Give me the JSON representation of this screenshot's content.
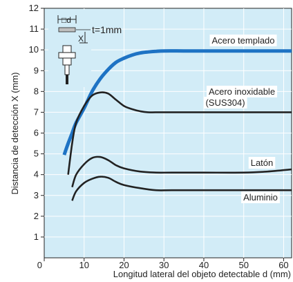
{
  "chart_data": {
    "type": "line",
    "title": "",
    "xlabel": "Longitud lateral del objeto detectable d (mm)",
    "ylabel": "Distancia de detección X (mm)",
    "xlim": [
      0,
      62
    ],
    "ylim": [
      0,
      12
    ],
    "x_ticks": [
      "0",
      "10",
      "20",
      "30",
      "40",
      "50",
      "60"
    ],
    "y_ticks": [
      "1",
      "2",
      "3",
      "4",
      "5",
      "6",
      "7",
      "8",
      "9",
      "10",
      "11",
      "12"
    ],
    "grid": true,
    "inset": {
      "d_label": "□d",
      "x_label": "X",
      "thickness_label": "t=1mm"
    },
    "series": [
      {
        "name": "Acero templado",
        "color": "#1e73c4",
        "points": [
          [
            5,
            4.95
          ],
          [
            6,
            5.5
          ],
          [
            7,
            6.0
          ],
          [
            8,
            6.5
          ],
          [
            10,
            7.2
          ],
          [
            12,
            8.0
          ],
          [
            14,
            8.6
          ],
          [
            16,
            9.05
          ],
          [
            18,
            9.4
          ],
          [
            20,
            9.6
          ],
          [
            22,
            9.75
          ],
          [
            24,
            9.85
          ],
          [
            26,
            9.9
          ],
          [
            28,
            9.93
          ],
          [
            30,
            9.95
          ],
          [
            35,
            9.95
          ],
          [
            40,
            9.95
          ],
          [
            50,
            9.95
          ],
          [
            62,
            9.95
          ]
        ]
      },
      {
        "name": "Acero inoxidable",
        "name_line2": "(SUS304)",
        "color": "#222222",
        "points": [
          [
            6,
            4.0
          ],
          [
            7,
            5.5
          ],
          [
            8,
            6.5
          ],
          [
            10,
            7.3
          ],
          [
            12,
            7.8
          ],
          [
            14,
            7.95
          ],
          [
            16,
            7.9
          ],
          [
            18,
            7.6
          ],
          [
            20,
            7.3
          ],
          [
            22,
            7.15
          ],
          [
            24,
            7.05
          ],
          [
            26,
            7.0
          ],
          [
            30,
            7.0
          ],
          [
            40,
            7.0
          ],
          [
            50,
            7.0
          ],
          [
            62,
            7.0
          ]
        ]
      },
      {
        "name": "Latón",
        "color": "#222222",
        "points": [
          [
            7,
            3.4
          ],
          [
            8,
            4.0
          ],
          [
            10,
            4.5
          ],
          [
            12,
            4.8
          ],
          [
            14,
            4.85
          ],
          [
            16,
            4.7
          ],
          [
            18,
            4.45
          ],
          [
            20,
            4.3
          ],
          [
            24,
            4.15
          ],
          [
            28,
            4.1
          ],
          [
            32,
            4.1
          ],
          [
            40,
            4.1
          ],
          [
            50,
            4.1
          ],
          [
            56,
            4.15
          ],
          [
            62,
            4.25
          ]
        ]
      },
      {
        "name": "Aluminio",
        "color": "#222222",
        "points": [
          [
            7,
            2.75
          ],
          [
            8,
            3.2
          ],
          [
            10,
            3.6
          ],
          [
            12,
            3.8
          ],
          [
            14,
            3.9
          ],
          [
            16,
            3.85
          ],
          [
            18,
            3.65
          ],
          [
            20,
            3.5
          ],
          [
            24,
            3.35
          ],
          [
            28,
            3.25
          ],
          [
            32,
            3.25
          ],
          [
            40,
            3.25
          ],
          [
            50,
            3.25
          ],
          [
            62,
            3.25
          ]
        ]
      }
    ]
  }
}
